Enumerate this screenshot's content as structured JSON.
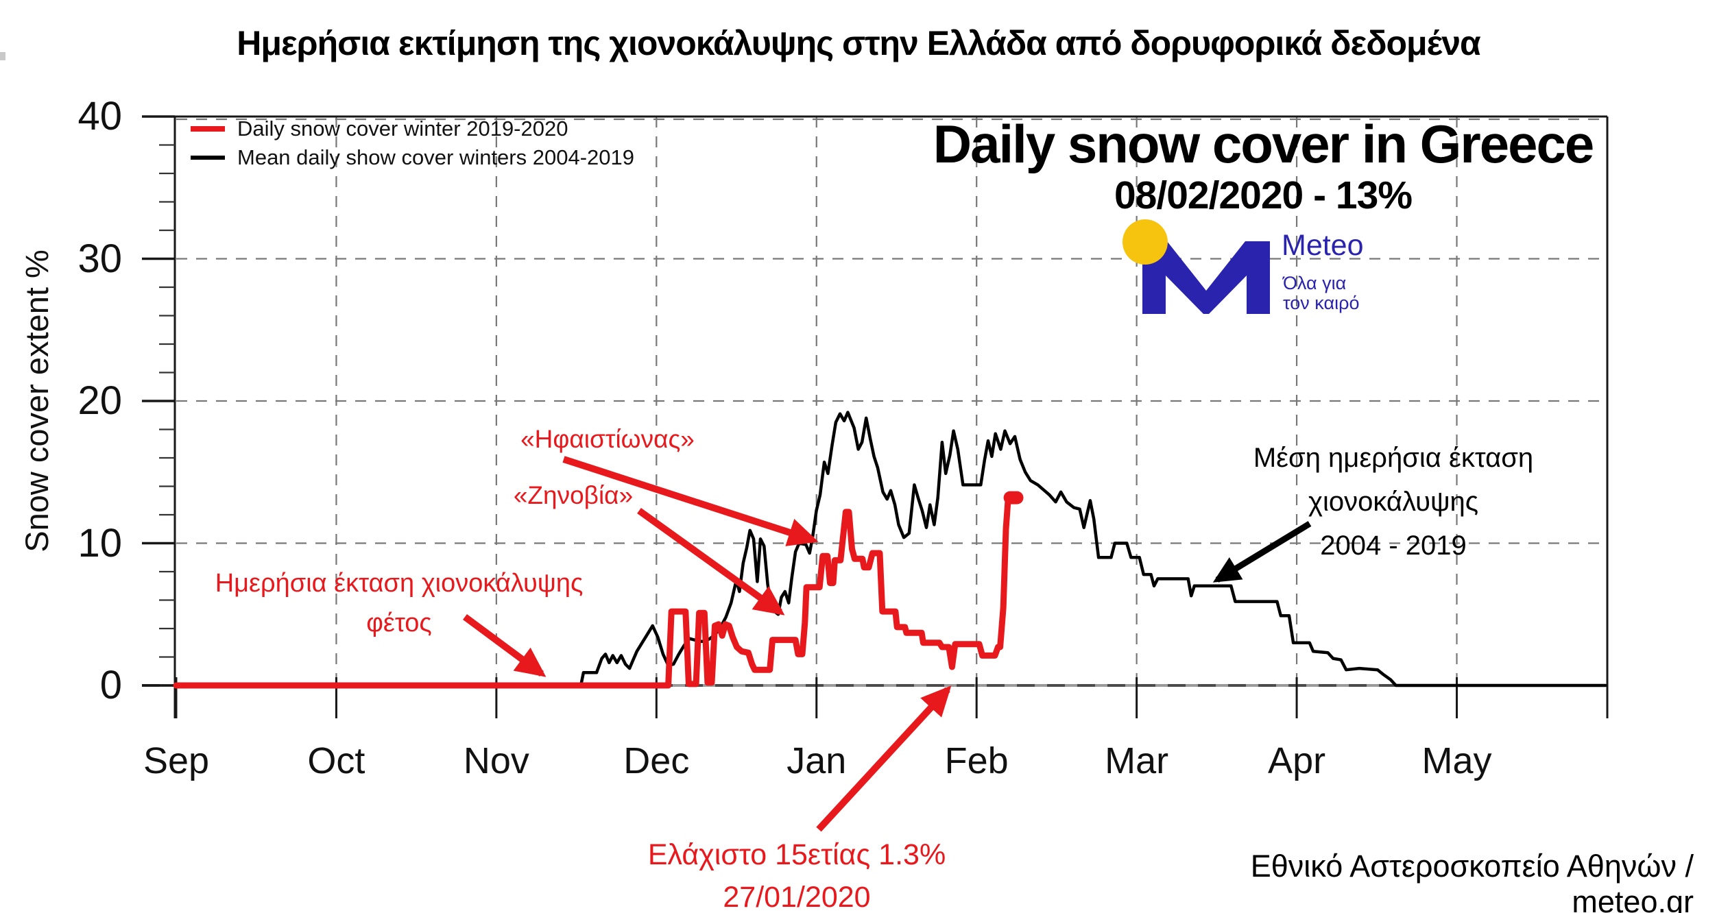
{
  "page_title": "Ημερήσια εκτίμηση της χιονοκάλυψης στην Ελλάδα από δορυφορικά δεδομένα",
  "colors": {
    "accent_red": "#e8191d",
    "ink_black": "#000000",
    "brand_blue": "#2a23ae",
    "brand_yellow": "#f6c40e",
    "grid_gray": "#787878",
    "zero_line_gray": "#4a4a4a"
  },
  "legend": {
    "items": [
      {
        "label": "Daily snow cover winter 2019-2020",
        "color": "#e8191d"
      },
      {
        "label": "Mean daily show cover winters 2004-2019",
        "color": "#000000"
      }
    ]
  },
  "header": {
    "title": "Daily snow cover in Greece",
    "subtitle": "08/02/2020 - 13%"
  },
  "logo": {
    "brand": "Meteo",
    "tagline_line1": "Όλα για",
    "tagline_line2": "τον καιρό"
  },
  "annotations": {
    "storm1": "«Ηφαιστίωνας»",
    "storm2": "«Ζηνοβία»",
    "this_year_line1": "Ημερήσια έκταση χιονοκάλυψης",
    "this_year_line2": "φέτος",
    "mean_line1": "Μέση ημερήσια έκταση",
    "mean_line2": "χιονοκάλυψης",
    "mean_line3": "2004 - 2019",
    "min_line1": "Ελάχιστο 15ετίας 1.3%",
    "min_line2": "27/01/2020"
  },
  "credit": "Εθνικό Αστεροσκοπείο Αθηνών / meteo.gr",
  "chart_data": {
    "type": "line",
    "title": "Daily snow cover in Greece",
    "ylabel": "Snow cover extent %",
    "ylim": [
      0,
      40
    ],
    "y_ticks": [
      0,
      10,
      20,
      30,
      40
    ],
    "y_minor_step": 2,
    "x_tick_labels": [
      "Sep",
      "Oct",
      "Nov",
      "Dec",
      "Jan",
      "Feb",
      "Mar",
      "Apr",
      "May"
    ],
    "x_unit": "days since Sep 1",
    "grid": "dashed",
    "legend_position": "top-left",
    "key_values": {
      "latest": {
        "date": "08/02/2020",
        "value_pct": 13
      },
      "minimum": {
        "date": "27/01/2020",
        "value_pct": 1.3,
        "label": "Ελάχιστο 15ετίας"
      }
    },
    "series": [
      {
        "name": "Mean daily show cover winters 2004-2019",
        "color": "#000000",
        "width": 4.5,
        "points": [
          [
            0,
            0
          ],
          [
            77.3,
            0
          ],
          [
            77.8,
            0.9
          ],
          [
            80.3,
            0.9
          ],
          [
            81.3,
            1.9
          ],
          [
            82,
            2.2
          ],
          [
            82.7,
            1.6
          ],
          [
            83.4,
            2.1
          ],
          [
            84.2,
            1.6
          ],
          [
            85,
            2.1
          ],
          [
            85.8,
            1.5
          ],
          [
            86.6,
            1.2
          ],
          [
            87.3,
            1.8
          ],
          [
            88,
            2.4
          ],
          [
            89,
            3.0
          ],
          [
            90,
            3.6
          ],
          [
            91,
            4.2
          ],
          [
            92,
            3.4
          ],
          [
            93,
            2.2
          ],
          [
            94,
            1.4
          ],
          [
            95,
            1.5
          ],
          [
            96,
            2.2
          ],
          [
            97,
            2.8
          ],
          [
            98,
            3.3
          ],
          [
            100,
            3.1
          ],
          [
            101,
            3.1
          ],
          [
            102,
            3.3
          ],
          [
            103,
            3.6
          ],
          [
            104,
            4.1
          ],
          [
            105,
            4.8
          ],
          [
            106,
            5.8
          ],
          [
            107,
            7.4
          ],
          [
            107.6,
            6.6
          ],
          [
            108.3,
            8.6
          ],
          [
            109,
            9.7
          ],
          [
            109.6,
            10.9
          ],
          [
            110.3,
            10.3
          ],
          [
            111,
            7.3
          ],
          [
            111.6,
            10.3
          ],
          [
            112.3,
            9.8
          ],
          [
            113,
            7.1
          ],
          [
            113.6,
            5.7
          ],
          [
            114.3,
            5.2
          ],
          [
            115,
            5.0
          ],
          [
            115.6,
            6.2
          ],
          [
            116.3,
            6.6
          ],
          [
            117,
            5.8
          ],
          [
            117.6,
            7.6
          ],
          [
            118.3,
            9.4
          ],
          [
            119,
            10.0
          ],
          [
            120.3,
            9.9
          ],
          [
            121,
            9.3
          ],
          [
            121.6,
            10.5
          ],
          [
            122.3,
            12.3
          ],
          [
            123,
            13.4
          ],
          [
            123.8,
            15.7
          ],
          [
            124.5,
            14.9
          ],
          [
            125.3,
            16.9
          ],
          [
            126,
            18.5
          ],
          [
            126.8,
            19.1
          ],
          [
            127.6,
            18.6
          ],
          [
            128.3,
            19.2
          ],
          [
            129.5,
            18.1
          ],
          [
            130.3,
            16.6
          ],
          [
            131,
            17.1
          ],
          [
            131.8,
            18.8
          ],
          [
            132.6,
            17.3
          ],
          [
            133.3,
            16.1
          ],
          [
            134,
            15.3
          ],
          [
            135,
            13.6
          ],
          [
            135.8,
            13.1
          ],
          [
            136.5,
            13.7
          ],
          [
            137.3,
            12.7
          ],
          [
            138,
            11.3
          ],
          [
            139,
            10.4
          ],
          [
            140,
            10.7
          ],
          [
            141,
            14.1
          ],
          [
            141.8,
            13.1
          ],
          [
            142.5,
            12.3
          ],
          [
            143.3,
            11.1
          ],
          [
            144,
            12.7
          ],
          [
            144.8,
            11.3
          ],
          [
            145.5,
            13.2
          ],
          [
            146.3,
            17.1
          ],
          [
            147,
            14.9
          ],
          [
            147.8,
            16.2
          ],
          [
            148.5,
            17.9
          ],
          [
            149.3,
            16.6
          ],
          [
            150.3,
            14.1
          ],
          [
            153.7,
            14.1
          ],
          [
            154.4,
            15.8
          ],
          [
            155.1,
            17.2
          ],
          [
            155.8,
            16.1
          ],
          [
            156.5,
            17.7
          ],
          [
            157.5,
            16.6
          ],
          [
            158.3,
            17.9
          ],
          [
            159.3,
            17.0
          ],
          [
            160.2,
            17.5
          ],
          [
            161.2,
            15.9
          ],
          [
            162.2,
            15.0
          ],
          [
            163.2,
            14.4
          ],
          [
            164.6,
            14.1
          ],
          [
            166.8,
            13.4
          ],
          [
            168,
            12.9
          ],
          [
            169,
            13.6
          ],
          [
            170.1,
            12.9
          ],
          [
            171.5,
            12.5
          ],
          [
            172.6,
            12.4
          ],
          [
            173.4,
            11.1
          ],
          [
            174.6,
            13.0
          ],
          [
            175.3,
            11.7
          ],
          [
            176.2,
            9.0
          ],
          [
            178.6,
            9.0
          ],
          [
            179.3,
            10.0
          ],
          [
            181.6,
            10.0
          ],
          [
            182.4,
            9.0
          ],
          [
            184,
            9.0
          ],
          [
            184.8,
            7.8
          ],
          [
            186.2,
            7.8
          ],
          [
            186.8,
            7.0
          ],
          [
            187.5,
            7.5
          ],
          [
            193.3,
            7.5
          ],
          [
            193.9,
            6.3
          ],
          [
            194.5,
            7.0
          ],
          [
            201.5,
            7.0
          ],
          [
            202.3,
            5.9
          ],
          [
            210.3,
            5.9
          ],
          [
            211,
            4.9
          ],
          [
            212.6,
            4.9
          ],
          [
            213.4,
            3.0
          ],
          [
            216.5,
            3.0
          ],
          [
            217.2,
            2.4
          ],
          [
            220,
            2.3
          ],
          [
            221,
            1.9
          ],
          [
            222.5,
            1.8
          ],
          [
            223.5,
            1.1
          ],
          [
            226,
            1.2
          ],
          [
            229.5,
            1.1
          ],
          [
            230.5,
            0.8
          ],
          [
            232,
            0.4
          ],
          [
            233,
            0
          ],
          [
            273,
            0
          ]
        ]
      },
      {
        "name": "Daily snow cover winter 2019-2020",
        "color": "#e8191d",
        "width": 9,
        "points": [
          [
            0,
            0
          ],
          [
            94,
            0
          ],
          [
            94.6,
            5.2
          ],
          [
            97.3,
            5.2
          ],
          [
            97.9,
            0.1
          ],
          [
            99.3,
            0.1
          ],
          [
            99.9,
            5.1
          ],
          [
            100.9,
            5.1
          ],
          [
            101.5,
            0.2
          ],
          [
            102.3,
            0.2
          ],
          [
            102.9,
            4.2
          ],
          [
            103.6,
            4.3
          ],
          [
            104.3,
            3.5
          ],
          [
            104.9,
            4.3
          ],
          [
            105.6,
            4.2
          ],
          [
            106.3,
            3.4
          ],
          [
            107.1,
            2.7
          ],
          [
            108,
            2.4
          ],
          [
            109.3,
            2.3
          ],
          [
            110,
            1.5
          ],
          [
            110.5,
            1.1
          ],
          [
            113.4,
            1.1
          ],
          [
            113.9,
            3.2
          ],
          [
            118.3,
            3.2
          ],
          [
            118.8,
            2.2
          ],
          [
            119.6,
            2.2
          ],
          [
            120.1,
            4.4
          ],
          [
            120.4,
            6.9
          ],
          [
            122.9,
            6.9
          ],
          [
            123.5,
            9.1
          ],
          [
            124.4,
            9.1
          ],
          [
            124.9,
            7.2
          ],
          [
            125.5,
            7.2
          ],
          [
            125.8,
            8.8
          ],
          [
            126.9,
            8.8
          ],
          [
            127.9,
            12.2
          ],
          [
            128.5,
            12.2
          ],
          [
            129.1,
            9.6
          ],
          [
            129.6,
            8.9
          ],
          [
            131.1,
            8.9
          ],
          [
            131.4,
            8.3
          ],
          [
            132.3,
            8.3
          ],
          [
            133,
            9.3
          ],
          [
            134.4,
            9.3
          ],
          [
            134.9,
            5.2
          ],
          [
            137.4,
            5.2
          ],
          [
            137.7,
            4.1
          ],
          [
            139.2,
            4.1
          ],
          [
            139.5,
            3.7
          ],
          [
            142.4,
            3.7
          ],
          [
            142.7,
            3.0
          ],
          [
            145.8,
            3.0
          ],
          [
            146.3,
            2.7
          ],
          [
            147.6,
            2.7
          ],
          [
            148.2,
            1.3
          ],
          [
            148.8,
            2.9
          ],
          [
            153.4,
            2.9
          ],
          [
            154,
            2.1
          ],
          [
            156.4,
            2.1
          ],
          [
            157,
            2.7
          ],
          [
            157.4,
            2.7
          ],
          [
            158,
            5.5
          ],
          [
            158.5,
            11.0
          ],
          [
            158.9,
            13.0
          ],
          [
            159.2,
            13.2
          ],
          [
            160.6,
            13.2
          ]
        ]
      }
    ]
  }
}
